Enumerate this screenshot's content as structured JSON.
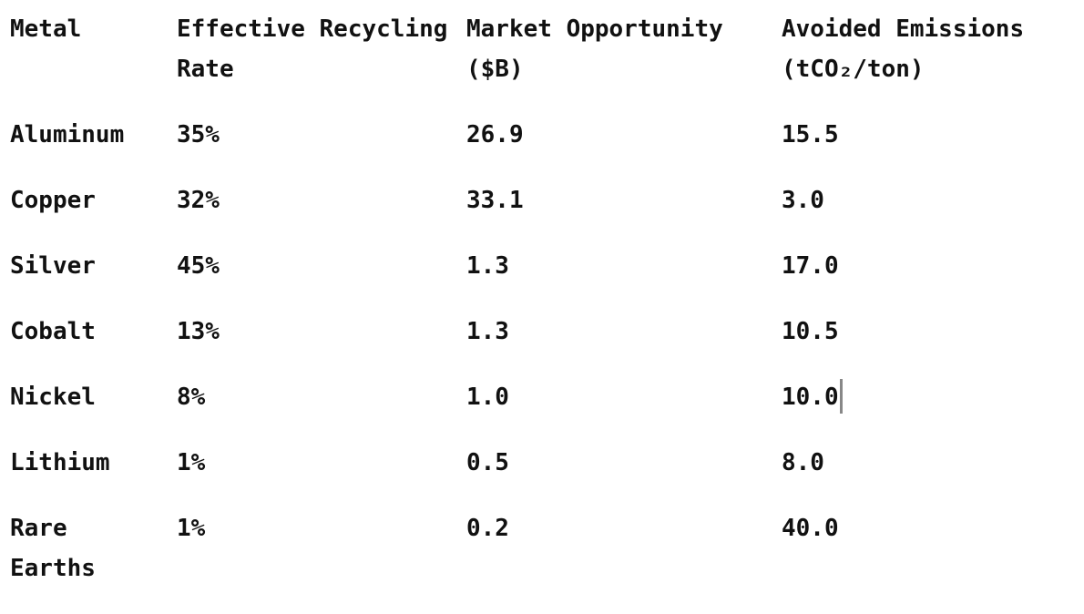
{
  "table": {
    "headers": [
      "Metal",
      "Effective Recycling Rate",
      "Market Opportunity ($B)",
      "Avoided Emissions (tCO₂/ton)"
    ],
    "rows": [
      [
        "Aluminum",
        "35%",
        "26.9",
        "15.5"
      ],
      [
        "Copper",
        "32%",
        "33.1",
        "3.0"
      ],
      [
        "Silver",
        "45%",
        "1.3",
        "17.0"
      ],
      [
        "Cobalt",
        "13%",
        "1.3",
        "10.5"
      ],
      [
        "Nickel",
        "8%",
        "1.0",
        "10.0"
      ],
      [
        "Lithium",
        "1%",
        "0.5",
        "8.0"
      ],
      [
        "Rare Earths",
        "1%",
        "0.2",
        "40.0"
      ]
    ]
  }
}
